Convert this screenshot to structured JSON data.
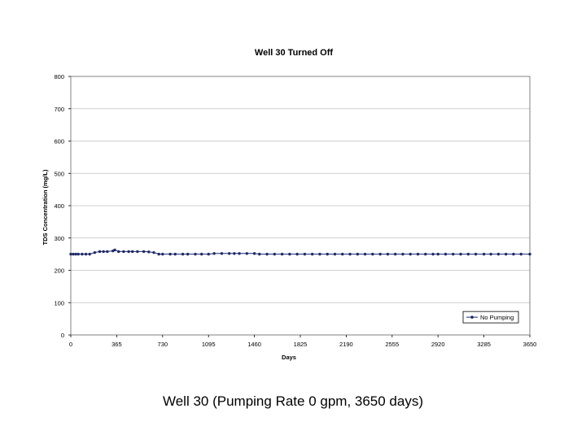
{
  "caption": "Well 30 (Pumping Rate 0 gpm, 3650 days)",
  "colors": {
    "series": "#1f2a6b",
    "grid": "#c0c0c0",
    "axis": "#808080"
  },
  "chart_data": {
    "type": "line",
    "title": "Well 30 Turned Off",
    "xlabel": "Days",
    "ylabel": "TDS Concentration (mg/L)",
    "xlim": [
      0,
      3650
    ],
    "ylim": [
      0,
      800
    ],
    "xticks": [
      0,
      365,
      730,
      1095,
      1460,
      1825,
      2190,
      2555,
      2920,
      3285,
      3650
    ],
    "xtick_labels": [
      "0",
      "365",
      "730",
      "1095",
      "1460",
      "1825",
      "2190",
      "2555",
      "2920",
      "3285",
      "3650"
    ],
    "yticks": [
      0,
      100,
      200,
      300,
      400,
      500,
      600,
      700,
      800
    ],
    "ytick_labels": [
      "0",
      "100",
      "200",
      "300",
      "400",
      "500",
      "600",
      "700",
      "800"
    ],
    "grid": true,
    "legend": "bottom-right",
    "series": [
      {
        "name": "No Pumping",
        "x": [
          0,
          20,
          40,
          60,
          90,
          120,
          150,
          190,
          230,
          260,
          290,
          335,
          350,
          380,
          420,
          460,
          490,
          530,
          580,
          620,
          660,
          700,
          730,
          790,
          830,
          890,
          930,
          990,
          1040,
          1095,
          1140,
          1200,
          1260,
          1300,
          1340,
          1400,
          1460,
          1500,
          1560,
          1620,
          1680,
          1740,
          1800,
          1860,
          1920,
          1980,
          2040,
          2100,
          2160,
          2220,
          2280,
          2340,
          2400,
          2460,
          2520,
          2580,
          2640,
          2700,
          2760,
          2820,
          2880,
          2920,
          2980,
          3040,
          3100,
          3160,
          3220,
          3285,
          3340,
          3400,
          3460,
          3520,
          3580,
          3650
        ],
        "values": [
          250,
          250,
          250,
          250,
          250,
          250,
          250,
          255,
          258,
          258,
          258,
          260,
          263,
          258,
          258,
          258,
          258,
          258,
          258,
          257,
          255,
          250,
          250,
          250,
          250,
          250,
          250,
          250,
          250,
          250,
          252,
          252,
          252,
          252,
          252,
          252,
          252,
          250,
          250,
          250,
          250,
          250,
          250,
          250,
          250,
          250,
          250,
          250,
          250,
          250,
          250,
          250,
          250,
          250,
          250,
          250,
          250,
          250,
          250,
          250,
          250,
          250,
          250,
          250,
          250,
          250,
          250,
          250,
          250,
          250,
          250,
          250,
          250,
          250
        ]
      }
    ]
  }
}
